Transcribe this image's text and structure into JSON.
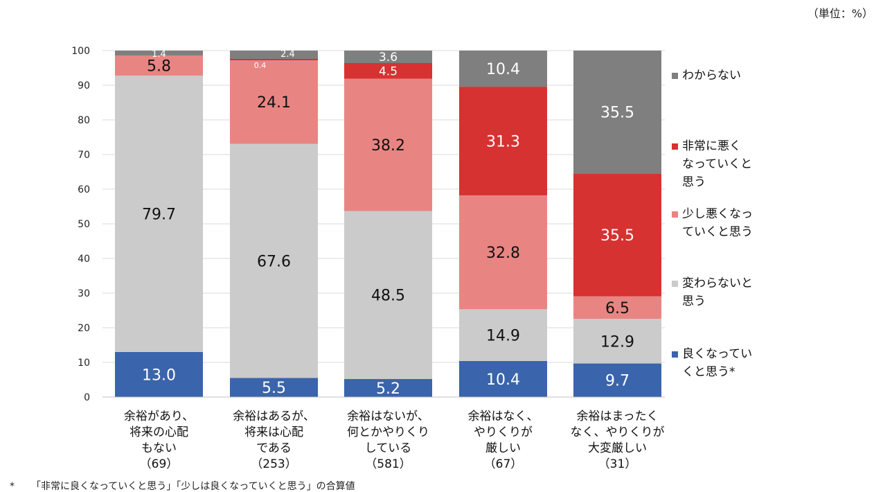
{
  "unit_note": "（単位：%）",
  "footnote": {
    "mark": "*",
    "text": "「非常に良くなっていくと思う」「少しは良くなっていくと思う」の合算値"
  },
  "chart_data": {
    "type": "bar",
    "stacked": true,
    "ylim": [
      0,
      100
    ],
    "yticks": [
      0,
      10,
      20,
      30,
      40,
      50,
      60,
      70,
      80,
      90,
      100
    ],
    "grid": true,
    "legend_position": "right",
    "categories": [
      "余裕があり、\n将来の心配\nもない\n（69）",
      "余裕はあるが、\n将来は心配\nである\n（253）",
      "余裕はないが、\n何とかやりくり\nしている\n（581）",
      "余裕はなく、\nやりくりが\n厳しい\n（67）",
      "余裕はまったく\nなく、やりくりが\n大変厳しい\n（31）"
    ],
    "series": [
      {
        "name": "良くなってい\nくと思う*",
        "color": "#3a64ab",
        "label_color": "#ffffff",
        "values": [
          13.0,
          5.5,
          5.2,
          10.4,
          9.7
        ]
      },
      {
        "name": "変わらないと\n思う",
        "color": "#cbcbcb",
        "label_color": "#111111",
        "values": [
          79.7,
          67.6,
          48.5,
          14.9,
          12.9
        ]
      },
      {
        "name": "少し悪くなっ\nていくと思う",
        "color": "#e88582",
        "label_color": "#111111",
        "values": [
          5.8,
          24.1,
          38.2,
          32.8,
          6.5
        ]
      },
      {
        "name": "非常に悪く\nなっていくと\n思う",
        "color": "#d63232",
        "label_color": "#ffffff",
        "values": [
          0,
          0.4,
          4.5,
          31.3,
          35.5
        ]
      },
      {
        "name": "わからない",
        "color": "#7f7f7f",
        "label_color": "#ffffff",
        "values": [
          1.4,
          2.4,
          3.6,
          10.4,
          35.5
        ]
      }
    ]
  }
}
